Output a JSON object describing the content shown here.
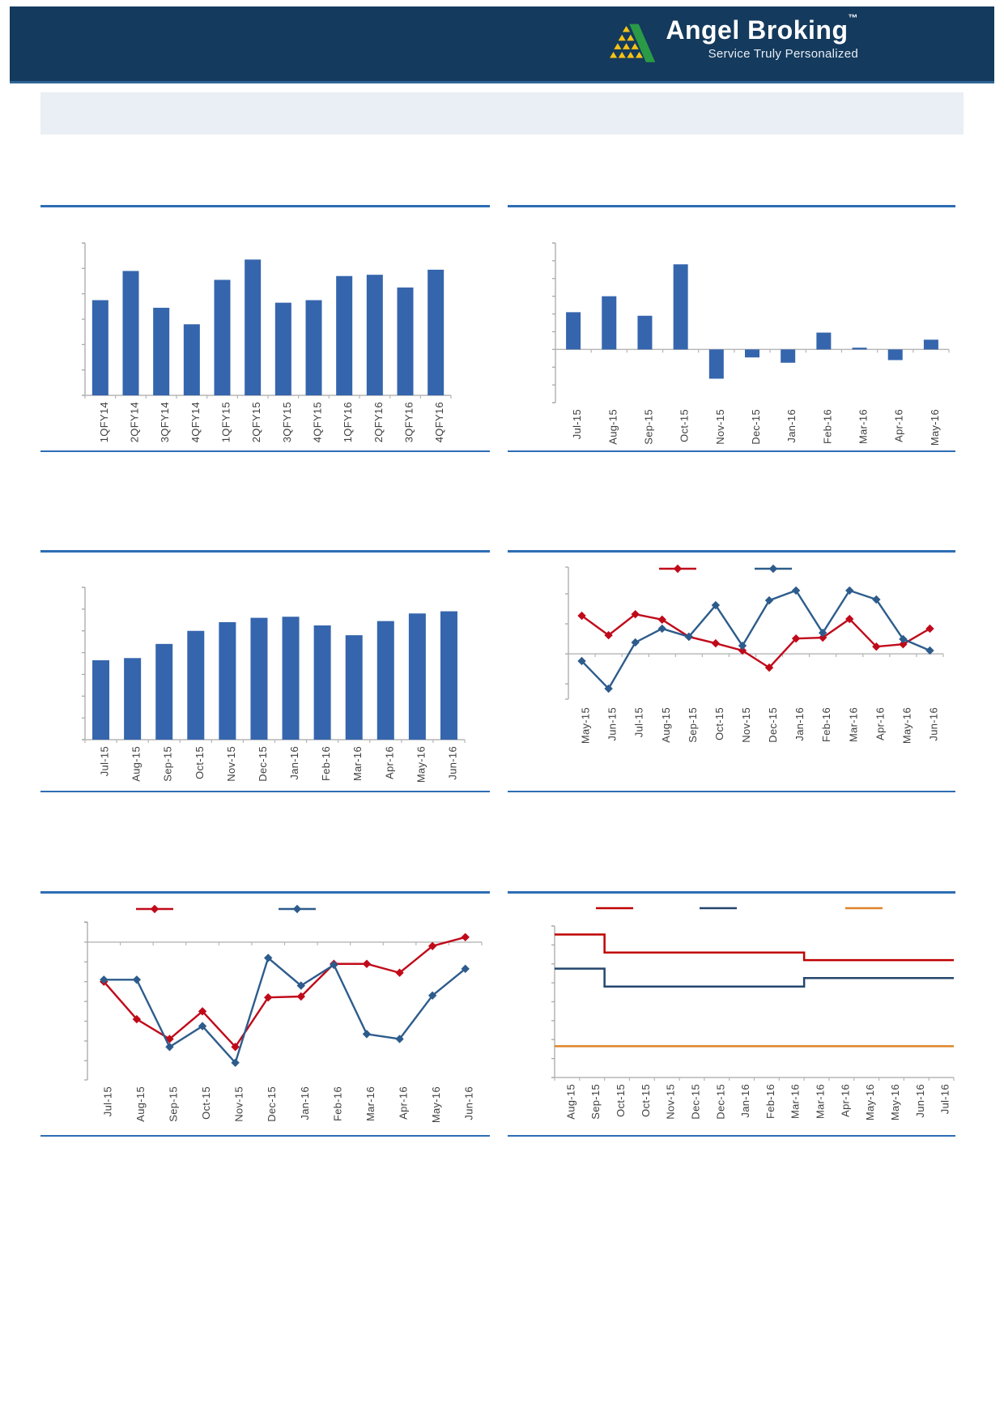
{
  "header": {
    "brand": "Angel Broking",
    "trademark": "TM",
    "tagline": "Service Truly Personalized",
    "bg": "#143a5d",
    "logo_green": "#2a9a47",
    "logo_yellow": "#f6c214"
  },
  "banner": {
    "bg": "#e9eff4"
  },
  "colors": {
    "rule_blue": "#2e6db4",
    "bar_blue": "#3565ad",
    "axis_gray": "#a9a9a9",
    "grid_gray": "#b5b5b5",
    "label_gray": "#3f3f3f",
    "line_red": "#c00a1a",
    "line_steel_blue": "#2d5c8c",
    "step_red": "#c00000",
    "step_navy": "#24466d",
    "step_orange": "#de8428"
  },
  "chart_data": [
    {
      "name": "quarterly-bars",
      "type": "bar",
      "title": "",
      "categories": [
        "1QFY14",
        "2QFY14",
        "3QFY14",
        "4QFY14",
        "1QFY15",
        "2QFY15",
        "3QFY15",
        "4QFY15",
        "1QFY16",
        "2QFY16",
        "3QFY16",
        "4QFY16"
      ],
      "values": [
        3.75,
        4.9,
        3.45,
        2.8,
        4.55,
        5.35,
        3.65,
        3.75,
        4.7,
        4.75,
        4.25,
        4.95
      ],
      "ylim": [
        0,
        6
      ],
      "bar_color": "#3565ad",
      "grid": false,
      "legend": false
    },
    {
      "name": "monthly-change-bars",
      "type": "bar",
      "title": "",
      "categories": [
        "Jul-15",
        "Aug-15",
        "Sep-15",
        "Oct-15",
        "Nov-15",
        "Dec-15",
        "Jan-16",
        "Feb-16",
        "Mar-16",
        "Apr-16",
        "May-16"
      ],
      "values": [
        2.1,
        3.0,
        1.9,
        4.8,
        -1.65,
        -0.45,
        -0.75,
        0.95,
        0.1,
        -0.6,
        0.55
      ],
      "ylim": [
        -3,
        6
      ],
      "bar_color": "#3565ad",
      "grid": false,
      "legend": false
    },
    {
      "name": "monthly-bars",
      "type": "bar",
      "title": "",
      "categories": [
        "Jul-15",
        "Aug-15",
        "Sep-15",
        "Oct-15",
        "Nov-15",
        "Dec-15",
        "Jan-16",
        "Feb-16",
        "Mar-16",
        "Apr-16",
        "May-16",
        "Jun-16"
      ],
      "values": [
        3.65,
        3.75,
        4.4,
        5.0,
        5.4,
        5.6,
        5.65,
        5.25,
        4.8,
        5.45,
        5.8,
        5.9
      ],
      "ylim": [
        0,
        7
      ],
      "bar_color": "#3565ad",
      "grid": false,
      "legend": false
    },
    {
      "name": "dual-line-monthly",
      "type": "line",
      "title": "",
      "categories": [
        "May-15",
        "Jun-15",
        "Jul-15",
        "Aug-15",
        "Sep-15",
        "Oct-15",
        "Nov-15",
        "Dec-15",
        "Jan-16",
        "Feb-16",
        "Mar-16",
        "Apr-16",
        "May-16",
        "Jun-16"
      ],
      "series": [
        {
          "name": "red-series",
          "color": "#c00a1a",
          "marker": "diamond",
          "label": "",
          "values": [
            1.27,
            0.62,
            1.32,
            1.14,
            0.57,
            0.35,
            0.11,
            -0.46,
            0.51,
            0.54,
            1.16,
            0.24,
            0.32,
            0.84
          ]
        },
        {
          "name": "blue-series",
          "color": "#2d5c8c",
          "marker": "diamond",
          "label": "",
          "values": [
            -0.24,
            -1.16,
            0.38,
            0.84,
            0.57,
            1.62,
            0.27,
            1.78,
            2.11,
            0.7,
            2.11,
            1.81,
            0.49,
            0.11
          ]
        }
      ],
      "ylim": [
        -1.51,
        2.89
      ],
      "zero_gridline": true,
      "legend": true,
      "legend_position": "top"
    },
    {
      "name": "dual-line-monthly-2",
      "type": "line",
      "title": "",
      "categories": [
        "Jul-15",
        "Aug-15",
        "Sep-15",
        "Oct-15",
        "Nov-15",
        "Dec-15",
        "Jan-16",
        "Feb-16",
        "Mar-16",
        "Apr-16",
        "May-16",
        "Jun-16"
      ],
      "series": [
        {
          "name": "red-series",
          "color": "#c00a1a",
          "marker": "diamond",
          "label": "",
          "values": [
            -2.0,
            -3.9,
            -4.9,
            -3.5,
            -5.3,
            -2.8,
            -2.75,
            -1.1,
            -1.1,
            -1.55,
            -0.2,
            0.25
          ]
        },
        {
          "name": "blue-series",
          "color": "#2d5c8c",
          "marker": "diamond",
          "label": "",
          "values": [
            -1.9,
            -1.9,
            -5.3,
            -4.25,
            -6.1,
            -0.8,
            -2.2,
            -1.15,
            -4.65,
            -4.9,
            -2.7,
            -1.35
          ]
        }
      ],
      "ylim": [
        -6.97,
        1.02
      ],
      "zero_gridline": true,
      "legend": true,
      "legend_position": "top"
    },
    {
      "name": "step-lines",
      "type": "step",
      "title": "",
      "categories": [
        "Aug-15",
        "Sep-15",
        "Oct-15",
        "Oct-15",
        "Nov-15",
        "Dec-15",
        "Dec-15",
        "Jan-16",
        "Feb-16",
        "Mar-16",
        "Mar-16",
        "Apr-16",
        "May-16",
        "May-16",
        "Jun-16",
        "Jul-16"
      ],
      "series": [
        {
          "name": "red-step",
          "color": "#c00000",
          "marker": "none",
          "label": "",
          "values": [
            7.55,
            7.55,
            6.6,
            6.6,
            6.6,
            6.6,
            6.6,
            6.6,
            6.6,
            6.6,
            6.2,
            6.2,
            6.2,
            6.2,
            6.2,
            6.2
          ]
        },
        {
          "name": "navy-step",
          "color": "#24466d",
          "marker": "none",
          "label": "",
          "values": [
            5.75,
            5.75,
            4.8,
            4.8,
            4.8,
            4.8,
            4.8,
            4.8,
            4.8,
            4.8,
            5.25,
            5.25,
            5.25,
            5.25,
            5.25,
            5.25
          ]
        },
        {
          "name": "orange-step",
          "color": "#de8428",
          "marker": "none",
          "label": "",
          "values": [
            1.65,
            1.65,
            1.65,
            1.65,
            1.65,
            1.65,
            1.65,
            1.65,
            1.65,
            1.65,
            1.65,
            1.65,
            1.65,
            1.65,
            1.65,
            1.65
          ]
        }
      ],
      "ylim": [
        0,
        8
      ],
      "zero_gridline": false,
      "legend": true,
      "legend_position": "top"
    }
  ]
}
